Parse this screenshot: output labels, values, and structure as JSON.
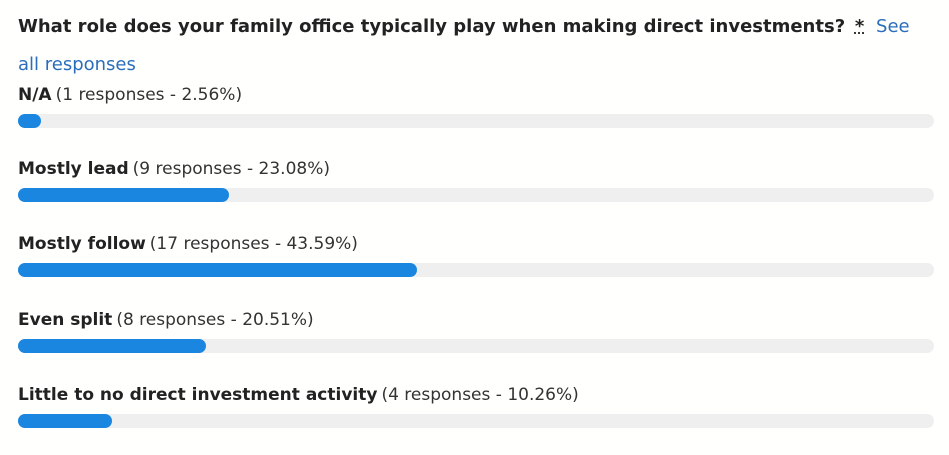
{
  "question": {
    "text": "What role does your family office typically play when making direct investments?",
    "required_marker": "*",
    "see_all_label": "See all responses"
  },
  "accent_color": "#1b86e0",
  "track_color": "#efefef",
  "results": [
    {
      "option": "N/A",
      "detail": "(1 responses - 2.56%)",
      "percent": 2.56
    },
    {
      "option": "Mostly lead",
      "detail": "(9 responses - 23.08%)",
      "percent": 23.08
    },
    {
      "option": "Mostly follow",
      "detail": "(17 responses - 43.59%)",
      "percent": 43.59
    },
    {
      "option": "Even split",
      "detail": "(8 responses - 20.51%)",
      "percent": 20.51
    },
    {
      "option": "Little to no direct investment activity",
      "detail": "(4 responses - 10.26%)",
      "percent": 10.26
    }
  ]
}
